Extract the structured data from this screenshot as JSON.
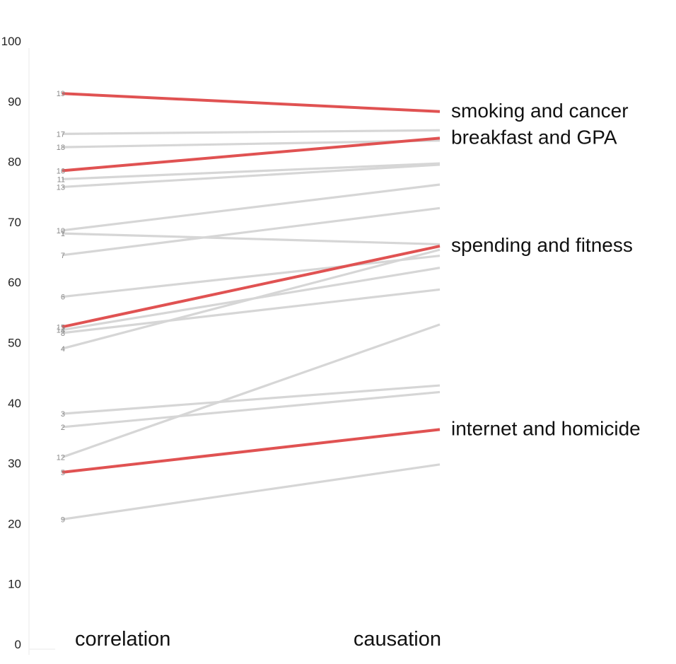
{
  "chart_data": {
    "type": "line",
    "categories": [
      "correlation",
      "causation"
    ],
    "ylim": [
      0,
      100
    ],
    "yticks": [
      0,
      10,
      20,
      30,
      40,
      50,
      60,
      70,
      80,
      90,
      100
    ],
    "grid": false,
    "colors": {
      "highlight": "#e05252",
      "default": "#d6d6d6"
    },
    "series": [
      {
        "name": "smoking and cancer",
        "id": "19",
        "values": [
          91.3,
          88.3
        ],
        "highlight": true
      },
      {
        "name": "",
        "id": "17",
        "values": [
          84.6,
          85.2
        ],
        "highlight": false
      },
      {
        "name": "",
        "id": "18",
        "values": [
          82.4,
          83.5
        ],
        "highlight": false
      },
      {
        "name": "breakfast and GPA",
        "id": "16",
        "values": [
          78.5,
          83.9
        ],
        "highlight": true
      },
      {
        "name": "",
        "id": "11",
        "values": [
          77.1,
          79.7
        ],
        "highlight": false
      },
      {
        "name": "",
        "id": "13",
        "values": [
          75.8,
          79.5
        ],
        "highlight": false
      },
      {
        "name": "",
        "id": "10",
        "values": [
          68.6,
          76.2
        ],
        "highlight": false
      },
      {
        "name": "",
        "id": "1",
        "values": [
          68.1,
          66.3
        ],
        "highlight": false
      },
      {
        "name": "",
        "id": "7",
        "values": [
          64.5,
          72.3
        ],
        "highlight": false
      },
      {
        "name": "",
        "id": "6",
        "values": [
          57.6,
          64.4
        ],
        "highlight": false
      },
      {
        "name": "spending and fitness",
        "id": "15",
        "values": [
          52.6,
          66.0
        ],
        "highlight": true
      },
      {
        "name": "",
        "id": "14",
        "values": [
          52.1,
          62.4
        ],
        "highlight": false
      },
      {
        "name": "",
        "id": "8",
        "values": [
          51.6,
          58.8
        ],
        "highlight": false
      },
      {
        "name": "",
        "id": "4",
        "values": [
          49.0,
          65.4
        ],
        "highlight": false
      },
      {
        "name": "",
        "id": "3",
        "values": [
          38.2,
          42.9
        ],
        "highlight": false
      },
      {
        "name": "",
        "id": "2",
        "values": [
          36.0,
          41.8
        ],
        "highlight": false
      },
      {
        "name": "",
        "id": "12",
        "values": [
          31.0,
          53.0
        ],
        "highlight": false
      },
      {
        "name": "internet and homicide",
        "id": "5",
        "values": [
          28.5,
          35.6
        ],
        "highlight": true
      },
      {
        "name": "",
        "id": "9",
        "values": [
          20.7,
          29.8
        ],
        "highlight": false
      }
    ]
  }
}
